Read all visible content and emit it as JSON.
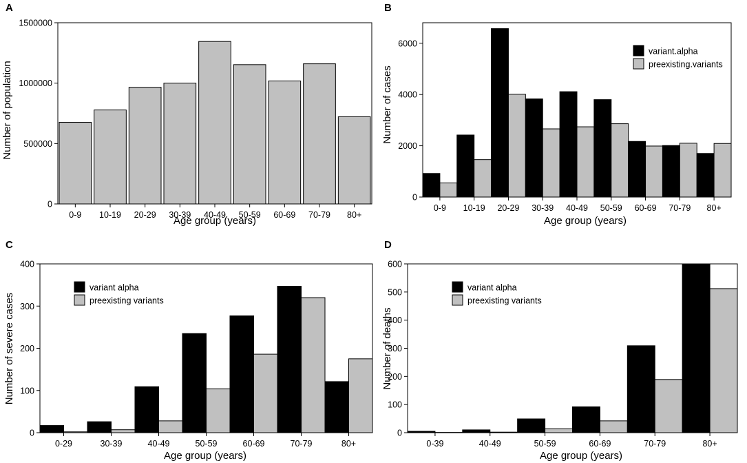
{
  "chart_data": [
    {
      "panel": "A",
      "type": "bar",
      "title": "",
      "xlabel": "Age group (years)",
      "ylabel": "Number of population",
      "ylim": [
        0,
        1500000
      ],
      "yticks": [
        0,
        500000,
        1000000,
        1500000
      ],
      "categories": [
        "0-9",
        "10-19",
        "20-29",
        "30-39",
        "40-49",
        "50-59",
        "60-69",
        "70-79",
        "80+"
      ],
      "series": [
        {
          "name": "population",
          "color": "#c0c0c0",
          "values": [
            676000,
            778000,
            966000,
            1000000,
            1345000,
            1153000,
            1018000,
            1160000,
            722000
          ]
        }
      ],
      "legend": null
    },
    {
      "panel": "B",
      "type": "bar",
      "title": "",
      "xlabel": "Age group (years)",
      "ylabel": "Number of cases",
      "ylim": [
        0,
        6800
      ],
      "yticks": [
        0,
        2000,
        4000,
        6000
      ],
      "categories": [
        "0-9",
        "10-19",
        "20-29",
        "30-39",
        "40-49",
        "50-59",
        "60-69",
        "70-79",
        "80+"
      ],
      "series": [
        {
          "name": "variant.alpha",
          "color": "#000000",
          "values": [
            920,
            2420,
            6570,
            3830,
            4110,
            3800,
            2170,
            2010,
            1700
          ]
        },
        {
          "name": "preexisting.variants",
          "color": "#c0c0c0",
          "values": [
            550,
            1460,
            4010,
            2660,
            2740,
            2860,
            1990,
            2100,
            2090
          ]
        }
      ],
      "legend": "top-right"
    },
    {
      "panel": "C",
      "type": "bar",
      "title": "",
      "xlabel": "Age group (years)",
      "ylabel": "Number of severe cases",
      "ylim": [
        0,
        400
      ],
      "yticks": [
        0,
        100,
        200,
        300,
        400
      ],
      "categories": [
        "0-29",
        "30-39",
        "40-49",
        "50-59",
        "60-69",
        "70-79",
        "80+"
      ],
      "series": [
        {
          "name": "variant alpha",
          "color": "#000000",
          "values": [
            17,
            26,
            109,
            235,
            277,
            347,
            121
          ]
        },
        {
          "name": "preexisting variants",
          "color": "#c0c0c0",
          "values": [
            2,
            7,
            28,
            104,
            186,
            320,
            175
          ]
        }
      ],
      "legend": "top-left"
    },
    {
      "panel": "D",
      "type": "bar",
      "title": "",
      "xlabel": "Age group (years)",
      "ylabel": "Number of deaths",
      "ylim": [
        0,
        600
      ],
      "yticks": [
        0,
        100,
        200,
        300,
        400,
        500,
        600
      ],
      "categories": [
        "0-39",
        "40-49",
        "50-59",
        "60-69",
        "70-79",
        "80+"
      ],
      "series": [
        {
          "name": "variant alpha",
          "color": "#000000",
          "values": [
            5,
            10,
            49,
            92,
            309,
            600
          ]
        },
        {
          "name": "preexisting variants",
          "color": "#c0c0c0",
          "values": [
            1,
            2,
            14,
            42,
            189,
            512
          ]
        }
      ],
      "legend": "top-left"
    }
  ]
}
